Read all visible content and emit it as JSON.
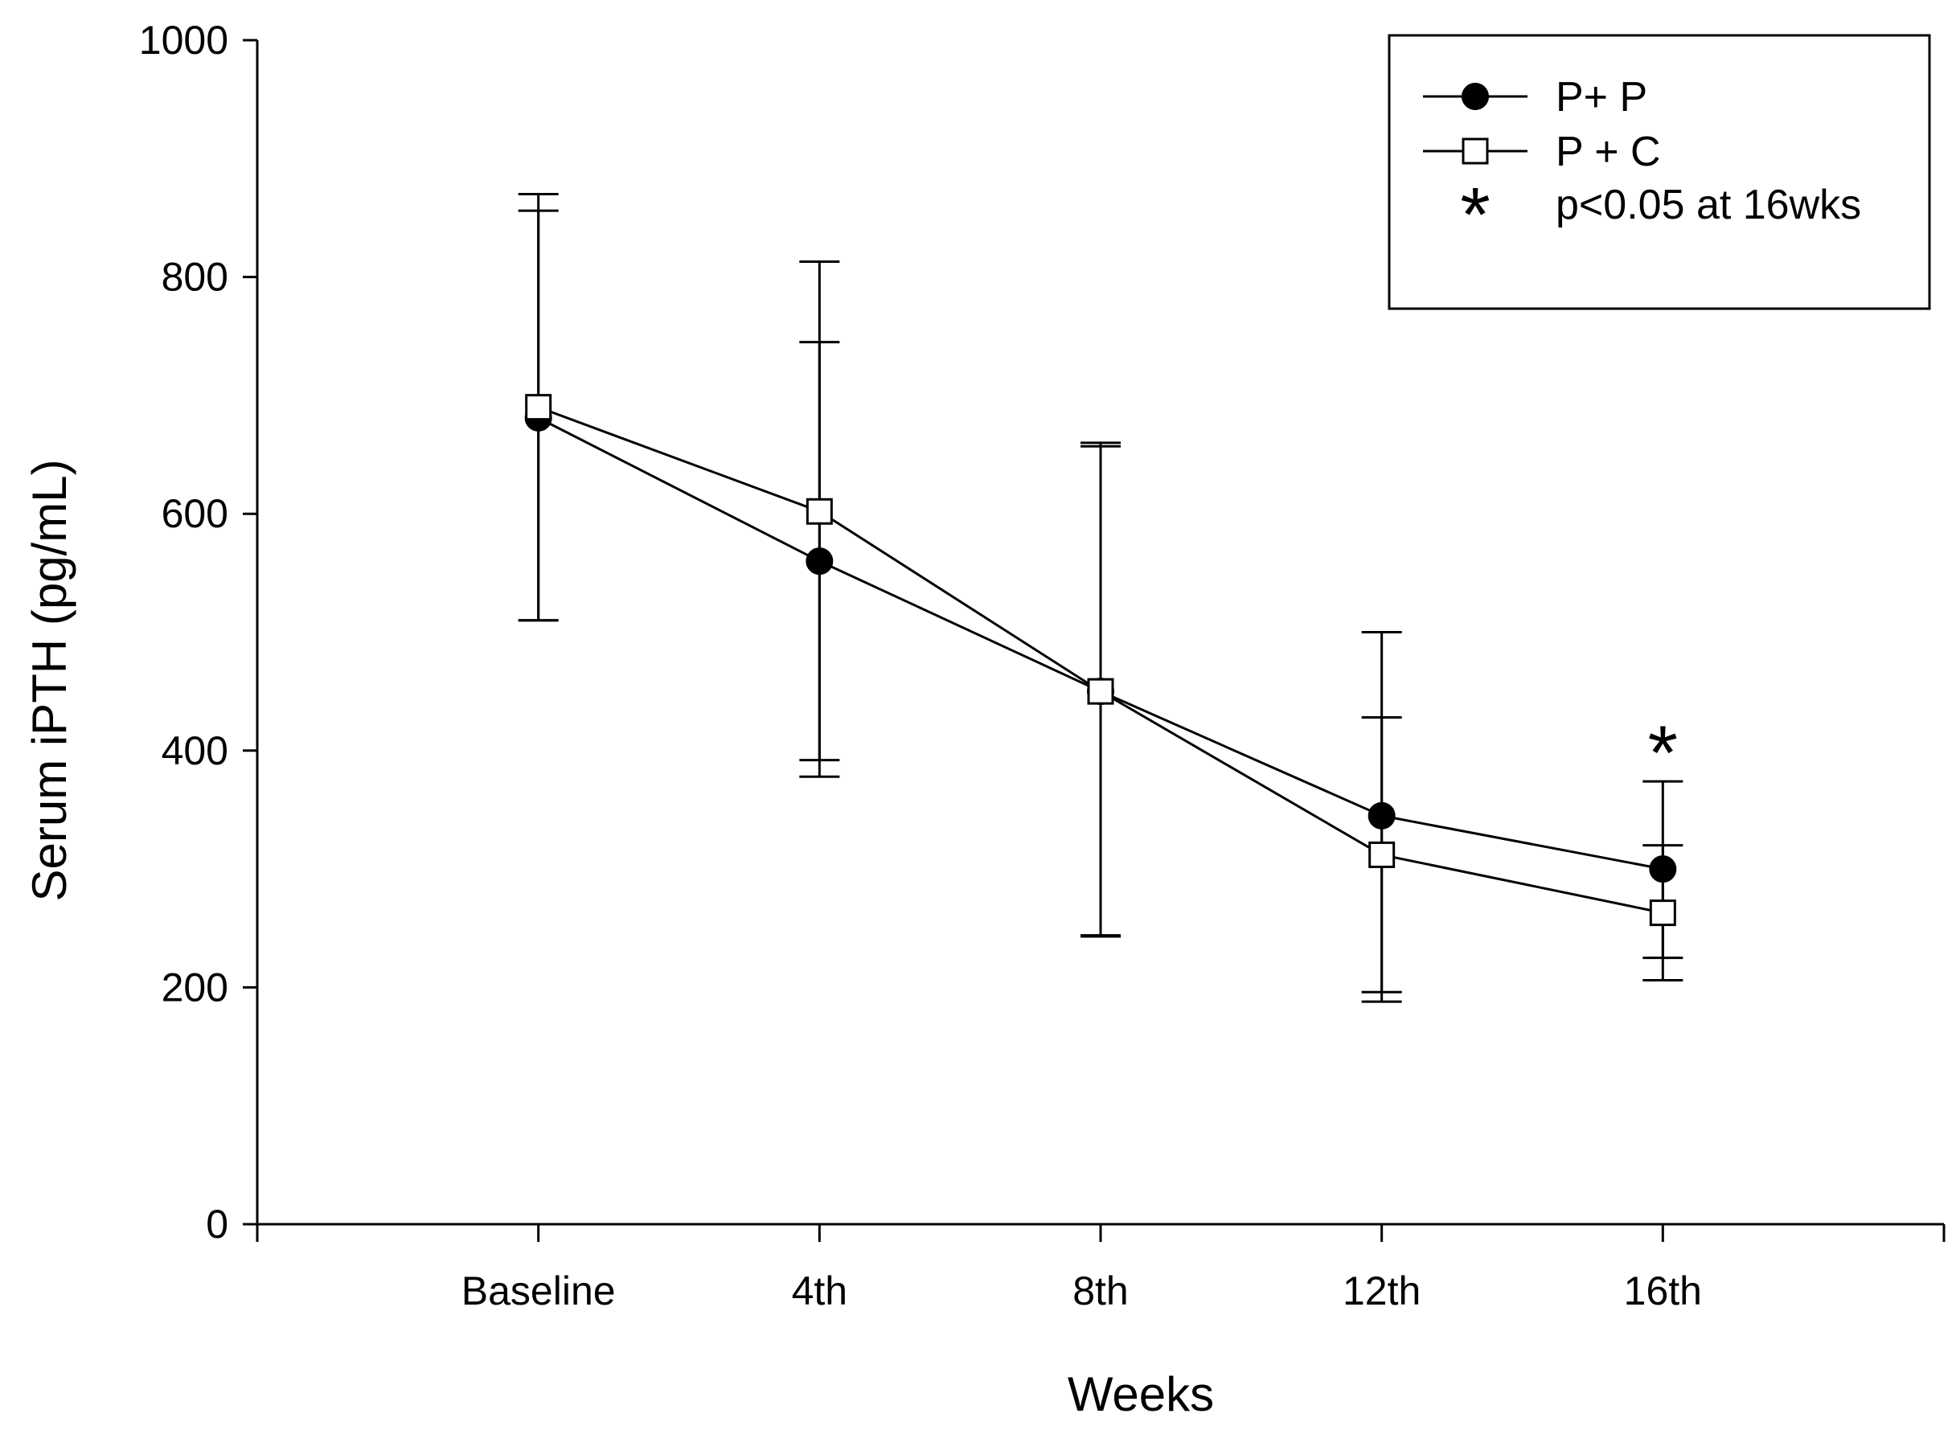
{
  "chart_data": {
    "type": "line",
    "title": "",
    "xlabel": "Weeks",
    "ylabel": "Serum iPTH (pg/mL)",
    "ylim": [
      0,
      1000
    ],
    "yticks": [
      0,
      200,
      400,
      600,
      800,
      1000
    ],
    "ytick_labels": [
      "0",
      "200",
      "400",
      "600",
      "800",
      "1000"
    ],
    "categories": [
      "Baseline",
      "4th",
      "8th",
      "12th",
      "16th"
    ],
    "xlim": [
      -1,
      5
    ],
    "series": [
      {
        "name": "P+ P",
        "marker": "filled-circle",
        "values": [
          681,
          560,
          450,
          345,
          300
        ],
        "err_upper": [
          870,
          745,
          660,
          428,
          374
        ],
        "err_lower": [
          510,
          392,
          244,
          188,
          225
        ]
      },
      {
        "name": "P + C",
        "marker": "open-square",
        "values": [
          690,
          602,
          450,
          312,
          263
        ],
        "err_upper": [
          856,
          813,
          657,
          500,
          320
        ],
        "err_lower": [
          510,
          378,
          243,
          196,
          206
        ]
      }
    ],
    "legend": {
      "position": "top-right",
      "entries": [
        "P+ P",
        "P + C"
      ],
      "significance_symbol": "*",
      "significance_label": "p<0.05 at 16wks"
    },
    "annotations": [
      {
        "text": "*",
        "category": "16th",
        "y": 415
      }
    ],
    "grid": false
  }
}
